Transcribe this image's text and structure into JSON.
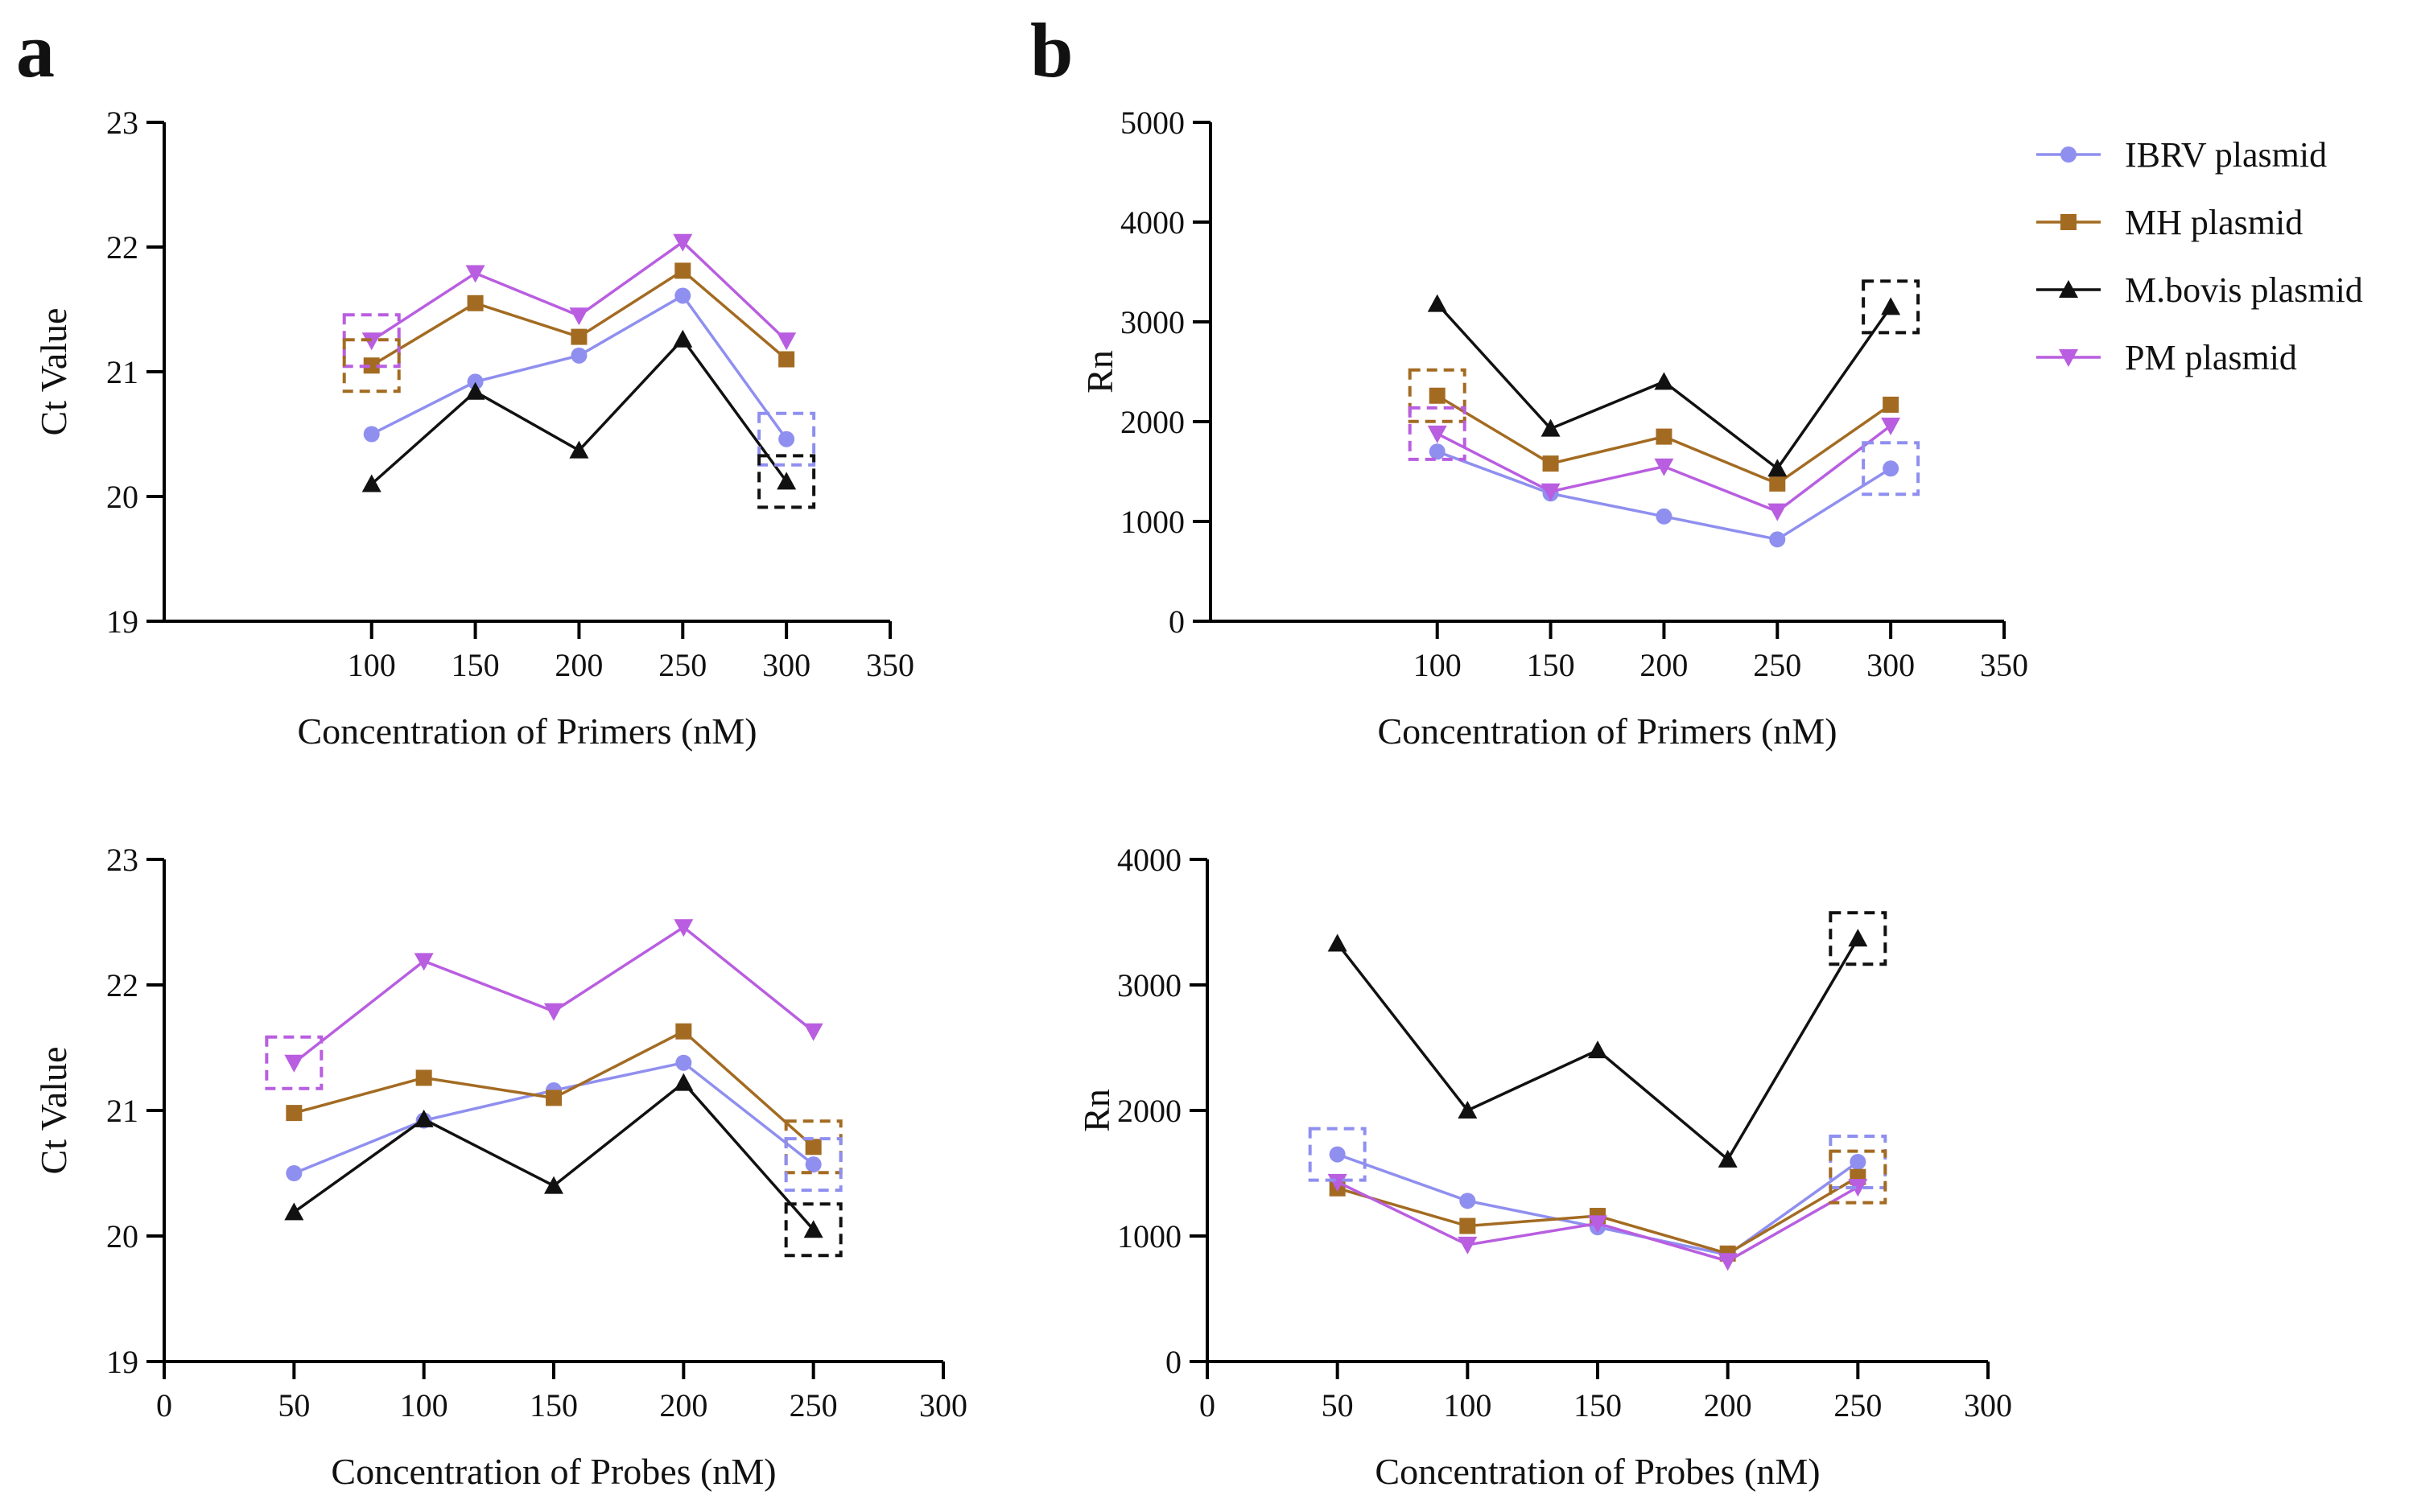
{
  "figure": {
    "panel_letters": [
      "a",
      "b"
    ],
    "legend": [
      {
        "label": "IBRV plasmid",
        "color": "#8f8ff0",
        "marker": "circle"
      },
      {
        "label": "MH plasmid",
        "color": "#a36b22",
        "marker": "square"
      },
      {
        "label": "M.bovis plasmid",
        "color": "#111111",
        "marker": "triangle-up"
      },
      {
        "label": "PM plasmid",
        "color": "#b95ee0",
        "marker": "triangle-down"
      }
    ]
  },
  "chart_data": [
    {
      "id": "a-primers-ct",
      "type": "line",
      "panel": "a",
      "xlabel": "Concentration of Primers (nM)",
      "ylabel": "Ct Value",
      "xlim": [
        0,
        350
      ],
      "ylim": [
        19,
        23
      ],
      "xticks": [
        100,
        150,
        200,
        250,
        300,
        350
      ],
      "yticks": [
        19,
        20,
        21,
        22,
        23
      ],
      "x": [
        100,
        150,
        200,
        250,
        300
      ],
      "series": [
        {
          "name": "IBRV plasmid",
          "values": [
            20.5,
            20.92,
            21.13,
            21.61,
            20.46
          ]
        },
        {
          "name": "MH plasmid",
          "values": [
            21.05,
            21.55,
            21.28,
            21.81,
            21.1
          ]
        },
        {
          "name": "M.bovis plasmid",
          "values": [
            20.1,
            20.84,
            20.37,
            21.26,
            20.12
          ]
        },
        {
          "name": "PM plasmid",
          "values": [
            21.25,
            21.79,
            21.45,
            22.04,
            21.25
          ]
        }
      ],
      "highlights": [
        {
          "series": "PM plasmid",
          "x": 100
        },
        {
          "series": "MH plasmid",
          "x": 100
        },
        {
          "series": "IBRV plasmid",
          "x": 300
        },
        {
          "series": "M.bovis plasmid",
          "x": 300
        }
      ]
    },
    {
      "id": "b-primers-rn",
      "type": "line",
      "panel": "b",
      "xlabel": "Concentration of Primers (nM)",
      "ylabel": "Rn",
      "xlim": [
        0,
        350
      ],
      "ylim": [
        0,
        5000
      ],
      "xticks": [
        100,
        150,
        200,
        250,
        300,
        350
      ],
      "yticks": [
        0,
        1000,
        2000,
        3000,
        4000,
        5000
      ],
      "x": [
        100,
        150,
        200,
        250,
        300
      ],
      "series": [
        {
          "name": "IBRV plasmid",
          "values": [
            1700,
            1280,
            1050,
            820,
            1530
          ]
        },
        {
          "name": "MH plasmid",
          "values": [
            2260,
            1580,
            1850,
            1380,
            2170
          ]
        },
        {
          "name": "M.bovis plasmid",
          "values": [
            3180,
            1930,
            2400,
            1530,
            3150
          ]
        },
        {
          "name": "PM plasmid",
          "values": [
            1880,
            1300,
            1550,
            1100,
            1960
          ]
        }
      ],
      "highlights": [
        {
          "series": "MH plasmid",
          "x": 100
        },
        {
          "series": "PM plasmid",
          "x": 100
        },
        {
          "series": "M.bovis plasmid",
          "x": 300
        },
        {
          "series": "IBRV plasmid",
          "x": 300
        }
      ]
    },
    {
      "id": "a-probes-ct",
      "type": "line",
      "panel": "a",
      "xlabel": "Concentration of Probes (nM)",
      "ylabel": "Ct Value",
      "xlim": [
        0,
        300
      ],
      "ylim": [
        19,
        23
      ],
      "xticks": [
        0,
        50,
        100,
        150,
        200,
        250,
        300
      ],
      "yticks": [
        19,
        20,
        21,
        22,
        23
      ],
      "x": [
        50,
        100,
        150,
        200,
        250
      ],
      "series": [
        {
          "name": "IBRV plasmid",
          "values": [
            20.5,
            20.92,
            21.16,
            21.38,
            20.57
          ]
        },
        {
          "name": "MH plasmid",
          "values": [
            20.98,
            21.26,
            21.1,
            21.63,
            20.71
          ]
        },
        {
          "name": "M.bovis plasmid",
          "values": [
            20.19,
            20.93,
            20.4,
            21.22,
            20.05
          ]
        },
        {
          "name": "PM plasmid",
          "values": [
            21.38,
            22.19,
            21.79,
            22.46,
            21.63
          ]
        }
      ],
      "highlights": [
        {
          "series": "PM plasmid",
          "x": 50
        },
        {
          "series": "MH plasmid",
          "x": 250
        },
        {
          "series": "IBRV plasmid",
          "x": 250
        },
        {
          "series": "M.bovis plasmid",
          "x": 250
        }
      ]
    },
    {
      "id": "b-probes-rn",
      "type": "line",
      "panel": "b",
      "xlabel": "Concentration of Probes (nM)",
      "ylabel": "Rn",
      "xlim": [
        0,
        300
      ],
      "ylim": [
        0,
        4000
      ],
      "xticks": [
        0,
        50,
        100,
        150,
        200,
        250,
        300
      ],
      "yticks": [
        0,
        1000,
        2000,
        3000,
        4000
      ],
      "x": [
        50,
        100,
        150,
        200,
        250
      ],
      "series": [
        {
          "name": "IBRV plasmid",
          "values": [
            1650,
            1280,
            1070,
            850,
            1590
          ]
        },
        {
          "name": "MH plasmid",
          "values": [
            1380,
            1080,
            1160,
            860,
            1470
          ]
        },
        {
          "name": "M.bovis plasmid",
          "values": [
            3330,
            2000,
            2480,
            1610,
            3370
          ]
        },
        {
          "name": "PM plasmid",
          "values": [
            1430,
            930,
            1100,
            800,
            1390
          ]
        }
      ],
      "highlights": [
        {
          "series": "IBRV plasmid",
          "x": 50
        },
        {
          "series": "M.bovis plasmid",
          "x": 250
        },
        {
          "series": "IBRV plasmid",
          "x": 250
        },
        {
          "series": "MH plasmid",
          "x": 250
        }
      ]
    }
  ]
}
